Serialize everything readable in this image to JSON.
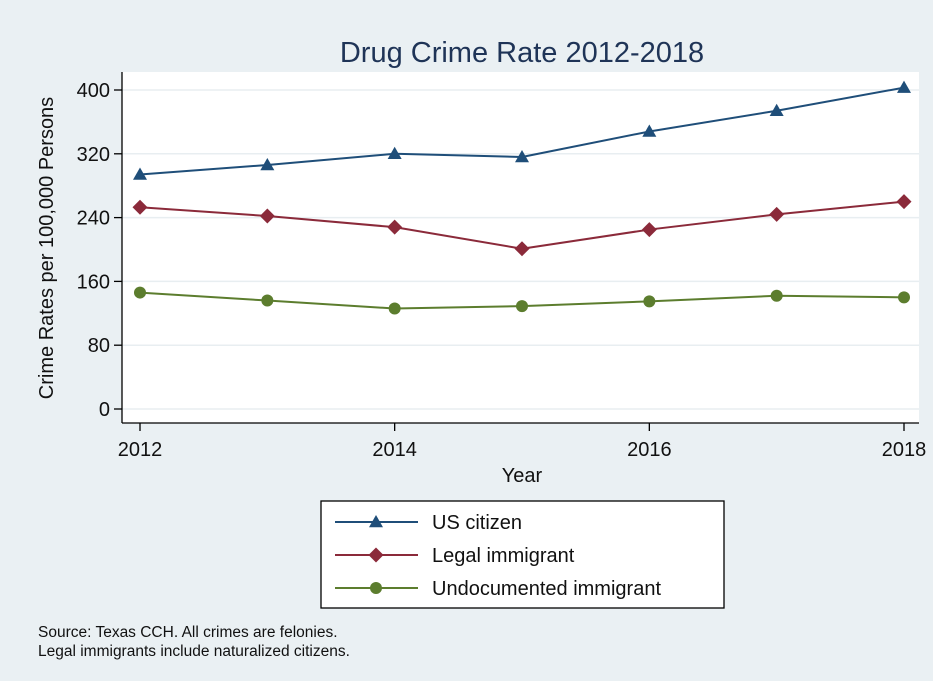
{
  "chart_data": {
    "type": "line",
    "title": "Drug Crime Rate 2012-2018",
    "xlabel": "Year",
    "ylabel": "Crime Rates per 100,000 Persons",
    "x": [
      2012,
      2013,
      2014,
      2015,
      2016,
      2017,
      2018
    ],
    "x_ticks": [
      2012,
      2014,
      2016,
      2018
    ],
    "y_ticks": [
      0,
      80,
      160,
      240,
      320,
      400
    ],
    "xlim": [
      2012,
      2018
    ],
    "ylim": [
      -20,
      420
    ],
    "grid": "horizontal",
    "legend_position": "bottom",
    "series": [
      {
        "name": "US citizen",
        "color": "#1f4e79",
        "marker": "triangle",
        "values": [
          294,
          306,
          320,
          316,
          348,
          374,
          403
        ]
      },
      {
        "name": "Legal immigrant",
        "color": "#8b2a3a",
        "marker": "diamond",
        "values": [
          253,
          242,
          228,
          201,
          225,
          244,
          260
        ]
      },
      {
        "name": "Undocumented immigrant",
        "color": "#5c7d2e",
        "marker": "circle",
        "values": [
          146,
          136,
          126,
          129,
          135,
          142,
          140
        ]
      }
    ]
  },
  "notes": [
    "Source: Texas CCH. All crimes are felonies.",
    "Legal immigrants include naturalized citizens."
  ]
}
